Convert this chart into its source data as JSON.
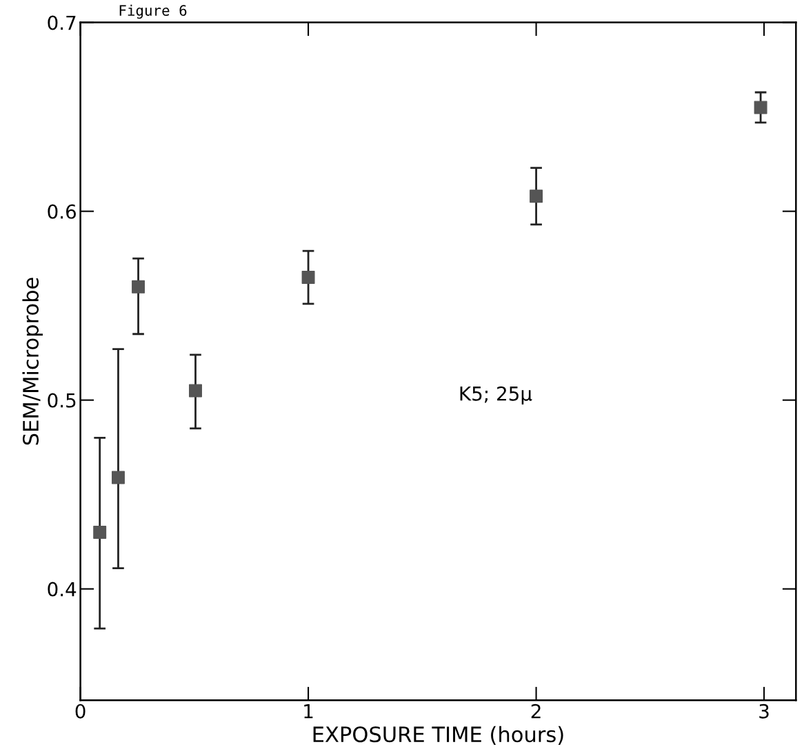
{
  "chart_data": {
    "type": "scatter",
    "title": "Figure 6",
    "xlabel": "EXPOSURE TIME (hours)",
    "ylabel": "SEM/Microprobe",
    "annotations": [
      "K5; 25μ"
    ],
    "x": [
      0.085,
      0.166,
      0.254,
      0.505,
      1.0,
      2.0,
      2.985
    ],
    "values": [
      0.43,
      0.459,
      0.56,
      0.505,
      0.565,
      0.608,
      0.655
    ],
    "errors": [
      [
        0.379,
        0.48
      ],
      [
        0.411,
        0.527
      ],
      [
        0.535,
        0.575
      ],
      [
        0.485,
        0.524
      ],
      [
        0.551,
        0.579
      ],
      [
        0.593,
        0.623
      ],
      [
        0.647,
        0.663
      ]
    ],
    "color": "#555555",
    "marker": "square",
    "grid": false,
    "legend": false,
    "xlim": [
      0,
      3.14
    ],
    "xticks": [
      0,
      1,
      2,
      3
    ],
    "ylim": [
      0.341,
      0.7
    ],
    "yticks": [
      0.4,
      0.5,
      0.6,
      0.7
    ]
  }
}
